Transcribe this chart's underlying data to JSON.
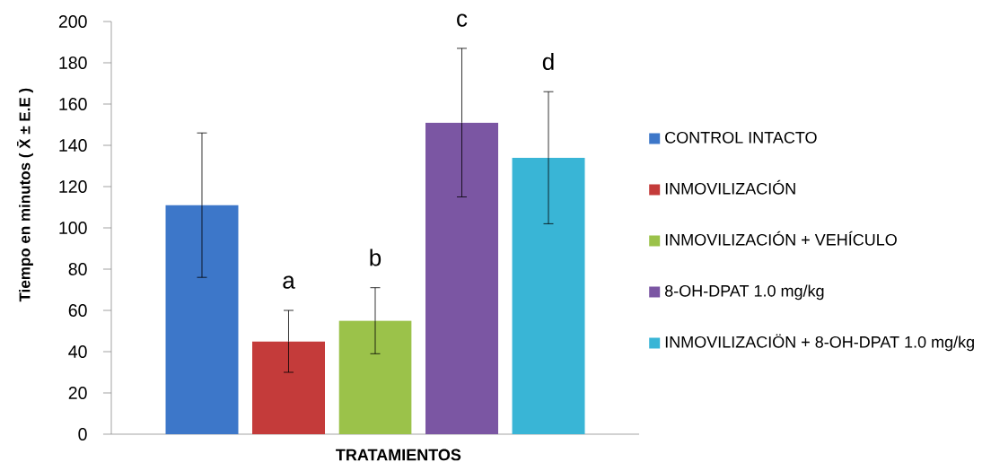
{
  "chart_data": {
    "type": "bar",
    "xlabel": "TRATAMIENTOS",
    "ylabel": "Tiempo en minutos ( X̄ ±  E.E )",
    "categories": [
      null
    ],
    "ylim": [
      0,
      200
    ],
    "yticks": [
      0,
      20,
      40,
      60,
      80,
      100,
      120,
      140,
      160,
      180,
      200
    ],
    "grid": false,
    "legend": "right",
    "annotations": [
      "a",
      "b",
      "c",
      "d"
    ],
    "series": [
      {
        "name": "CONTROL INTACTO",
        "color": "#3d77c9",
        "values": [
          111
        ],
        "errors": [
          35
        ]
      },
      {
        "name": "INMOVILIZACIÓN",
        "color": "#c43b3a",
        "values": [
          45
        ],
        "errors": [
          15
        ]
      },
      {
        "name": "INMOVILIZACIÓN + VEHÍCULO",
        "color": "#9bc24a",
        "values": [
          55
        ],
        "errors": [
          16
        ]
      },
      {
        "name": "8-OH-DPAT 1.0 mg/kg",
        "color": "#7b56a3",
        "values": [
          151
        ],
        "errors": [
          36
        ]
      },
      {
        "name": "INMOVILIZACIÖN + 8-OH-DPAT 1.0 mg/kg",
        "color": "#39b5d6",
        "values": [
          134
        ],
        "errors": [
          32
        ]
      }
    ]
  }
}
